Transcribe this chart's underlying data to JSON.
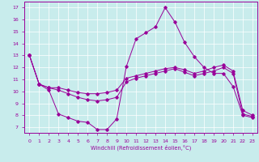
{
  "xlabel": "Windchill (Refroidissement éolien,°C)",
  "bg_color": "#c8ecec",
  "line_color": "#990099",
  "grid_color": "#ffffff",
  "xlim": [
    -0.5,
    23.5
  ],
  "ylim": [
    6.5,
    17.5
  ],
  "xticks": [
    0,
    1,
    2,
    3,
    4,
    5,
    6,
    7,
    8,
    9,
    10,
    11,
    12,
    13,
    14,
    15,
    16,
    17,
    18,
    19,
    20,
    21,
    22,
    23
  ],
  "yticks": [
    7,
    8,
    9,
    10,
    11,
    12,
    13,
    14,
    15,
    16,
    17
  ],
  "line1_x": [
    0,
    1,
    2,
    3,
    4,
    5,
    6,
    7,
    8,
    9,
    10,
    11,
    12,
    13,
    14,
    15,
    16,
    17,
    18,
    19,
    20,
    21,
    22,
    23
  ],
  "line1_y": [
    13.0,
    10.6,
    10.1,
    8.1,
    7.8,
    7.5,
    7.4,
    6.8,
    6.8,
    7.7,
    12.1,
    14.4,
    14.9,
    15.4,
    17.0,
    15.8,
    14.1,
    12.9,
    12.0,
    11.5,
    11.5,
    10.4,
    8.0,
    7.8
  ],
  "line2_x": [
    0,
    1,
    2,
    3,
    4,
    5,
    6,
    7,
    8,
    9,
    10,
    11,
    12,
    13,
    14,
    15,
    16,
    17,
    18,
    19,
    20,
    21,
    22,
    23
  ],
  "line2_y": [
    13.0,
    10.6,
    10.3,
    10.1,
    9.8,
    9.5,
    9.3,
    9.2,
    9.3,
    9.5,
    10.8,
    11.1,
    11.3,
    11.5,
    11.7,
    11.9,
    11.6,
    11.3,
    11.5,
    11.7,
    12.0,
    11.5,
    8.1,
    7.9
  ],
  "line3_x": [
    0,
    1,
    2,
    3,
    4,
    5,
    6,
    7,
    8,
    9,
    10,
    11,
    12,
    13,
    14,
    15,
    16,
    17,
    18,
    19,
    20,
    21,
    22,
    23
  ],
  "line3_y": [
    13.0,
    10.6,
    10.3,
    10.3,
    10.1,
    9.9,
    9.8,
    9.8,
    9.9,
    10.1,
    11.1,
    11.3,
    11.5,
    11.7,
    11.9,
    12.0,
    11.8,
    11.5,
    11.7,
    12.0,
    12.2,
    11.7,
    8.4,
    8.0
  ]
}
